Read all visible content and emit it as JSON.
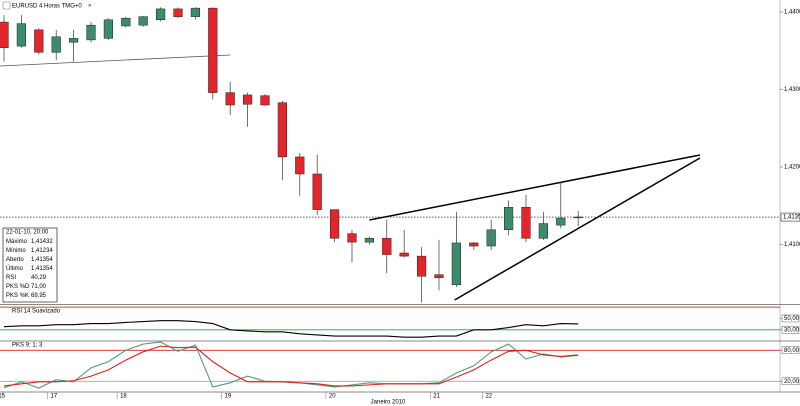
{
  "chart_data": [
    {
      "type": "candlestick",
      "title": "EURUSD 4 Horas TMG+0",
      "categories": [
        "15",
        null,
        null,
        "17",
        null,
        null,
        null,
        "18",
        null,
        null,
        null,
        null,
        null,
        "19",
        null,
        null,
        null,
        null,
        null,
        "20",
        null,
        null,
        null,
        null,
        null,
        "21",
        null,
        null,
        "22",
        null,
        null,
        null,
        null,
        null
      ],
      "open": [
        1.4387,
        1.4356,
        1.4377,
        1.4348,
        1.4361,
        1.4364,
        1.4366,
        1.4382,
        1.4383,
        1.439,
        1.4404,
        1.4394,
        1.4405,
        1.4296,
        1.4293,
        1.4292,
        1.4283,
        1.4213,
        1.4191,
        1.4145,
        1.4114,
        1.4103,
        1.4108,
        1.4089,
        1.4085,
        1.4061,
        1.4048,
        1.4102,
        1.4098,
        1.4119,
        1.4148,
        1.4108,
        1.4125,
        1.41354
      ],
      "high": [
        1.4396,
        1.4396,
        1.4379,
        1.4377,
        1.4377,
        1.4387,
        1.4392,
        1.4394,
        1.4395,
        1.4406,
        1.4406,
        1.4406,
        1.4406,
        1.431,
        1.4296,
        1.4294,
        1.4285,
        1.4218,
        1.4216,
        1.4145,
        1.4119,
        1.411,
        1.4132,
        1.4119,
        1.4097,
        1.4106,
        1.4142,
        1.4103,
        1.4132,
        1.4157,
        1.4164,
        1.4142,
        1.4181,
        1.41432
      ],
      "low": [
        1.4336,
        1.4354,
        1.4345,
        1.4338,
        1.4336,
        1.4361,
        1.4364,
        1.438,
        1.4381,
        1.4388,
        1.4392,
        1.439,
        1.4287,
        1.4267,
        1.4252,
        1.4279,
        1.4183,
        1.4163,
        1.4138,
        1.4103,
        1.4077,
        1.41,
        1.4063,
        1.4083,
        1.4025,
        1.4041,
        1.4045,
        1.4093,
        1.4093,
        1.4112,
        1.4103,
        1.4106,
        1.4121,
        1.41234
      ],
      "close": [
        1.4354,
        1.4385,
        1.4348,
        1.4368,
        1.4366,
        1.4383,
        1.439,
        1.4392,
        1.4394,
        1.4404,
        1.4394,
        1.4405,
        1.4296,
        1.428,
        1.4281,
        1.428,
        1.4213,
        1.4191,
        1.4145,
        1.4108,
        1.4103,
        1.4108,
        1.4087,
        1.4085,
        1.4059,
        1.4057,
        1.4102,
        1.4098,
        1.4119,
        1.4148,
        1.4108,
        1.4127,
        1.4134,
        1.41354
      ],
      "up_color": "#3c8c6c",
      "down_color": "#e3262b",
      "xlim": [
        -0.23,
        44.6
      ],
      "ylim": [
        1.40245,
        1.44155
      ],
      "yticks": [
        {
          "value": 1.41,
          "label": "1,41000"
        },
        {
          "value": 1.42,
          "label": "1,42000"
        },
        {
          "value": 1.43,
          "label": "1,43000"
        },
        {
          "value": 1.44,
          "label": "1,44000"
        }
      ],
      "last_price": {
        "value": 1.41354,
        "label": "1,41354"
      },
      "trendlines": [
        {
          "x": [
            -0.23,
            13.0
          ],
          "y": [
            1.43303,
            1.43445
          ],
          "color": "#555555"
        },
        {
          "x": [
            21.0,
            40.0
          ],
          "y": [
            1.41316,
            1.42155
          ],
          "color": "#000000"
        },
        {
          "x": [
            25.9,
            40.0
          ],
          "y": [
            1.40284,
            1.42116
          ],
          "color": "#000000"
        }
      ],
      "x_axis_label": "Janeiro 2010",
      "info": {
        "date": "22-01-10, 20:00",
        "rows": [
          {
            "label": "Máximo",
            "value": "1,41432",
            "color": "#000000"
          },
          {
            "label": "Mínimo",
            "value": "1,41234",
            "color": "#000000"
          },
          {
            "label": "Aberto",
            "value": "1,41354",
            "color": "#000000"
          },
          {
            "label": "Último",
            "value": "1,41354",
            "color": "#000000"
          },
          {
            "label": "RSI",
            "value": "40,29",
            "color": "#000000"
          },
          {
            "label": "PKS %D",
            "value": "71,00",
            "color": "#e02020"
          },
          {
            "label": "PKS %K",
            "value": "69,95",
            "color": "#3c9c70"
          }
        ]
      }
    },
    {
      "type": "line",
      "title": "RSI 14 Suavizado",
      "series": [
        {
          "color": "#000000",
          "values": [
            35.5,
            37,
            37,
            39,
            39,
            41,
            41,
            43,
            44.5,
            46,
            46,
            44.5,
            41,
            30,
            28,
            26.5,
            26.5,
            23,
            21,
            19,
            19,
            19,
            19,
            17,
            17,
            19,
            19,
            30,
            30,
            34,
            39,
            37,
            41,
            40.29
          ]
        }
      ],
      "ylim": [
        12,
        72
      ],
      "yticks": [
        {
          "value": 50,
          "label": "50,00"
        },
        {
          "value": 30,
          "label": "30,00"
        }
      ],
      "levels": [
        {
          "value": 70,
          "color": "#c00000"
        },
        {
          "value": 30,
          "color": "#2a9a3a"
        }
      ]
    },
    {
      "type": "line",
      "title": "PKS 9; 1; 3",
      "series": [
        {
          "color": "#4aa07a",
          "values": [
            7.2,
            19,
            7,
            23,
            19,
            46,
            58,
            80,
            92,
            96,
            78,
            90,
            9,
            17,
            30,
            20,
            19,
            17,
            13,
            9,
            13,
            17,
            15,
            15,
            15,
            17,
            36,
            50,
            77,
            92,
            63,
            73,
            67,
            69.95
          ]
        },
        {
          "color": "#e02020",
          "values": [
            11,
            15,
            19,
            19,
            21,
            30,
            42,
            61,
            77,
            88,
            85,
            86,
            58,
            36,
            19,
            19,
            19,
            17,
            15,
            11,
            11,
            13,
            15,
            15,
            15,
            15,
            28,
            42,
            61,
            78,
            80,
            71,
            68,
            71
          ]
        }
      ],
      "ylim": [
        0,
        96
      ],
      "yticks": [
        {
          "value": 80,
          "label": "80,00"
        },
        {
          "value": 20,
          "label": "20,00"
        }
      ],
      "levels": [
        {
          "value": 80,
          "color": "#c00000"
        },
        {
          "value": 20,
          "color": "#999999"
        }
      ]
    }
  ]
}
